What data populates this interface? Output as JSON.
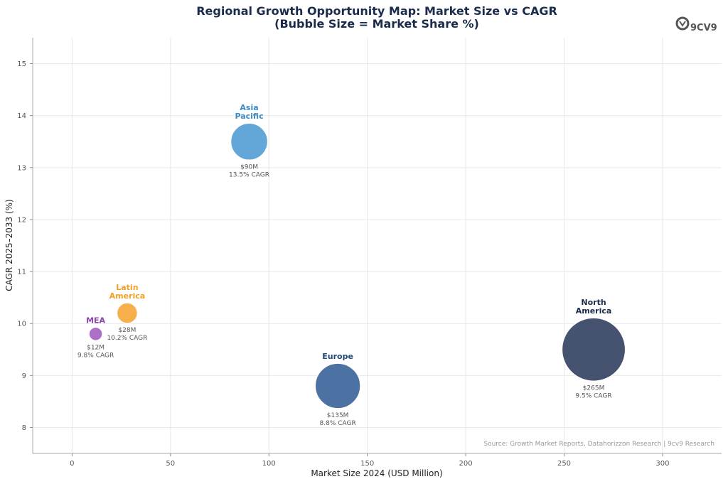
{
  "chart_data": {
    "type": "scatter",
    "title": "Regional Growth Opportunity Map: Market Size vs CAGR",
    "subtitle": "(Bubble Size = Market Share %)",
    "xlabel": "Market Size 2024 (USD Million)",
    "ylabel": "CAGR 2025–2033 (%)",
    "xlim": [
      -20,
      330
    ],
    "ylim": [
      7.5,
      15.5
    ],
    "xticks": [
      0,
      50,
      100,
      150,
      200,
      250,
      300
    ],
    "yticks": [
      8,
      9,
      10,
      11,
      12,
      13,
      14,
      15
    ],
    "grid": true,
    "series": [
      {
        "name": "Asia Pacific",
        "label_lines": [
          "Asia",
          "Pacific"
        ],
        "x": 90,
        "y": 13.5,
        "value_label": "$90M",
        "cagr_label": "13.5% CAGR",
        "color": "#4d9bd3"
      },
      {
        "name": "Latin America",
        "label_lines": [
          "Latin",
          "America"
        ],
        "x": 28,
        "y": 10.2,
        "value_label": "$28M",
        "cagr_label": "10.2% CAGR",
        "color": "#f5a431"
      },
      {
        "name": "MEA",
        "label_lines": [
          "MEA"
        ],
        "x": 12,
        "y": 9.8,
        "value_label": "$12M",
        "cagr_label": "9.8% CAGR",
        "color": "#a05cc0"
      },
      {
        "name": "Europe",
        "label_lines": [
          "Europe"
        ],
        "x": 135,
        "y": 8.8,
        "value_label": "$135M",
        "cagr_label": "8.8% CAGR",
        "color": "#335e97"
      },
      {
        "name": "North America",
        "label_lines": [
          "North",
          "America"
        ],
        "x": 265,
        "y": 9.5,
        "value_label": "$265M",
        "cagr_label": "9.5% CAGR",
        "color": "#2b3b5c"
      }
    ],
    "label_colors": {
      "Asia Pacific": "#3a8ac6",
      "Latin America": "#f0a024",
      "MEA": "#8e44ad",
      "Europe": "#24477a",
      "North America": "#1a2b4c"
    },
    "source": "Source: Growth Market Reports, Datahorizzon Research | 9cv9 Research"
  },
  "brand": {
    "logo_text": "9CV9"
  }
}
